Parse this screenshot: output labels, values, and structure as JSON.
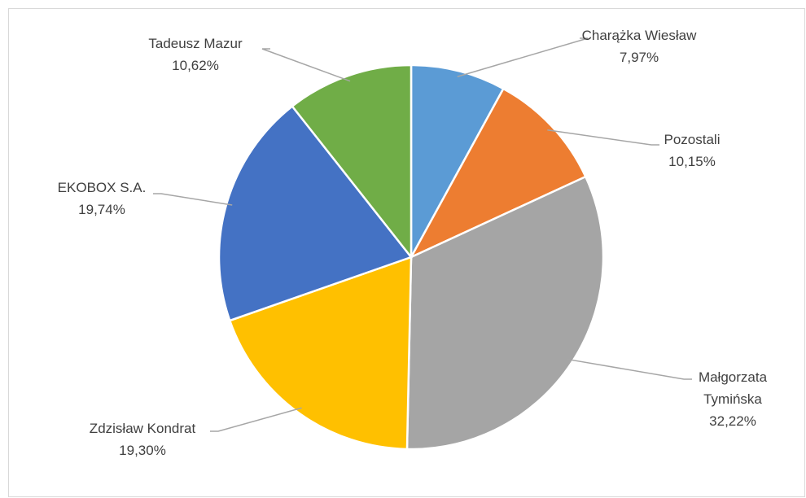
{
  "chart_data": {
    "type": "pie",
    "categories": [
      "Charążka Wiesław",
      "Pozostali",
      "Małgorzata Tymińska",
      "Zdzisław Kondrat",
      "EKOBOX S.A.",
      "Tadeusz Mazur"
    ],
    "values": [
      7.97,
      10.15,
      32.22,
      19.3,
      19.74,
      10.62
    ],
    "value_labels": [
      "7,97%",
      "10,15%",
      "32,22%",
      "19,30%",
      "19,74%",
      "10,62%"
    ],
    "colors": [
      "#5b9bd5",
      "#ed7d31",
      "#a5a5a5",
      "#ffc000",
      "#4472c4",
      "#70ad47"
    ]
  }
}
